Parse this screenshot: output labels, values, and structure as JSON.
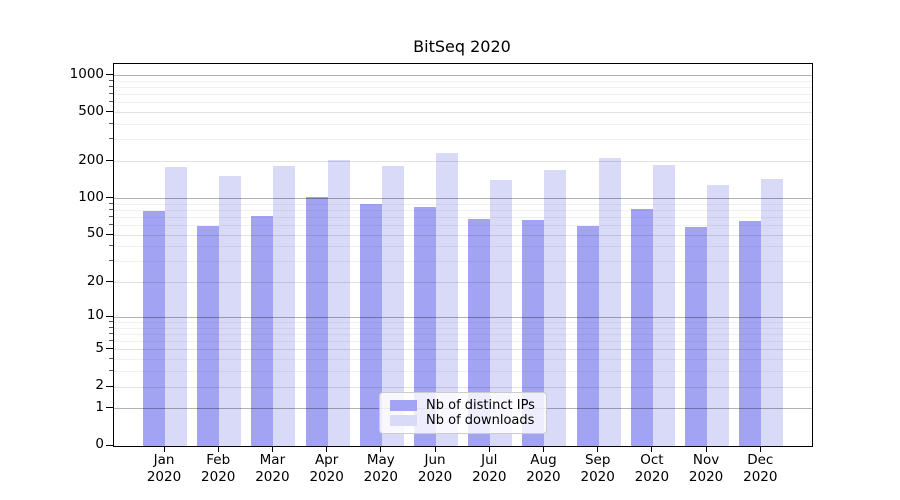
{
  "chart_data": {
    "type": "bar",
    "title": "BitSeq 2020",
    "yscale": "log1p",
    "grid": "on",
    "legend_position": "lower center",
    "categories": [
      "Jan",
      "Feb",
      "Mar",
      "Apr",
      "May",
      "Jun",
      "Jul",
      "Aug",
      "Sep",
      "Oct",
      "Nov",
      "Dec"
    ],
    "category_year": "2020",
    "series": [
      {
        "name": "Nb of distinct IPs",
        "color": "#a3a3f3",
        "values": [
          78,
          59,
          71,
          101,
          89,
          84,
          67,
          66,
          59,
          81,
          58,
          65
        ]
      },
      {
        "name": "Nb of downloads",
        "color": "#d9d9f8",
        "values": [
          180,
          152,
          183,
          206,
          184,
          231,
          141,
          168,
          210,
          186,
          128,
          142
        ]
      }
    ],
    "yticks": [
      1000,
      500,
      200,
      100,
      50,
      20,
      10,
      5,
      2,
      1,
      0
    ],
    "yticks_decade": [
      1000,
      100,
      10,
      1
    ],
    "yticks_minor": [
      3,
      4,
      6,
      7,
      8,
      9,
      30,
      40,
      60,
      70,
      80,
      90,
      300,
      400,
      600,
      700,
      800,
      900
    ],
    "ylim": [
      0,
      1100
    ],
    "xlabel": "",
    "ylabel": ""
  },
  "legend": {
    "items": [
      {
        "label": "Nb of distinct IPs",
        "color": "#a3a3f3"
      },
      {
        "label": "Nb of downloads",
        "color": "#d9d9f8"
      }
    ]
  }
}
